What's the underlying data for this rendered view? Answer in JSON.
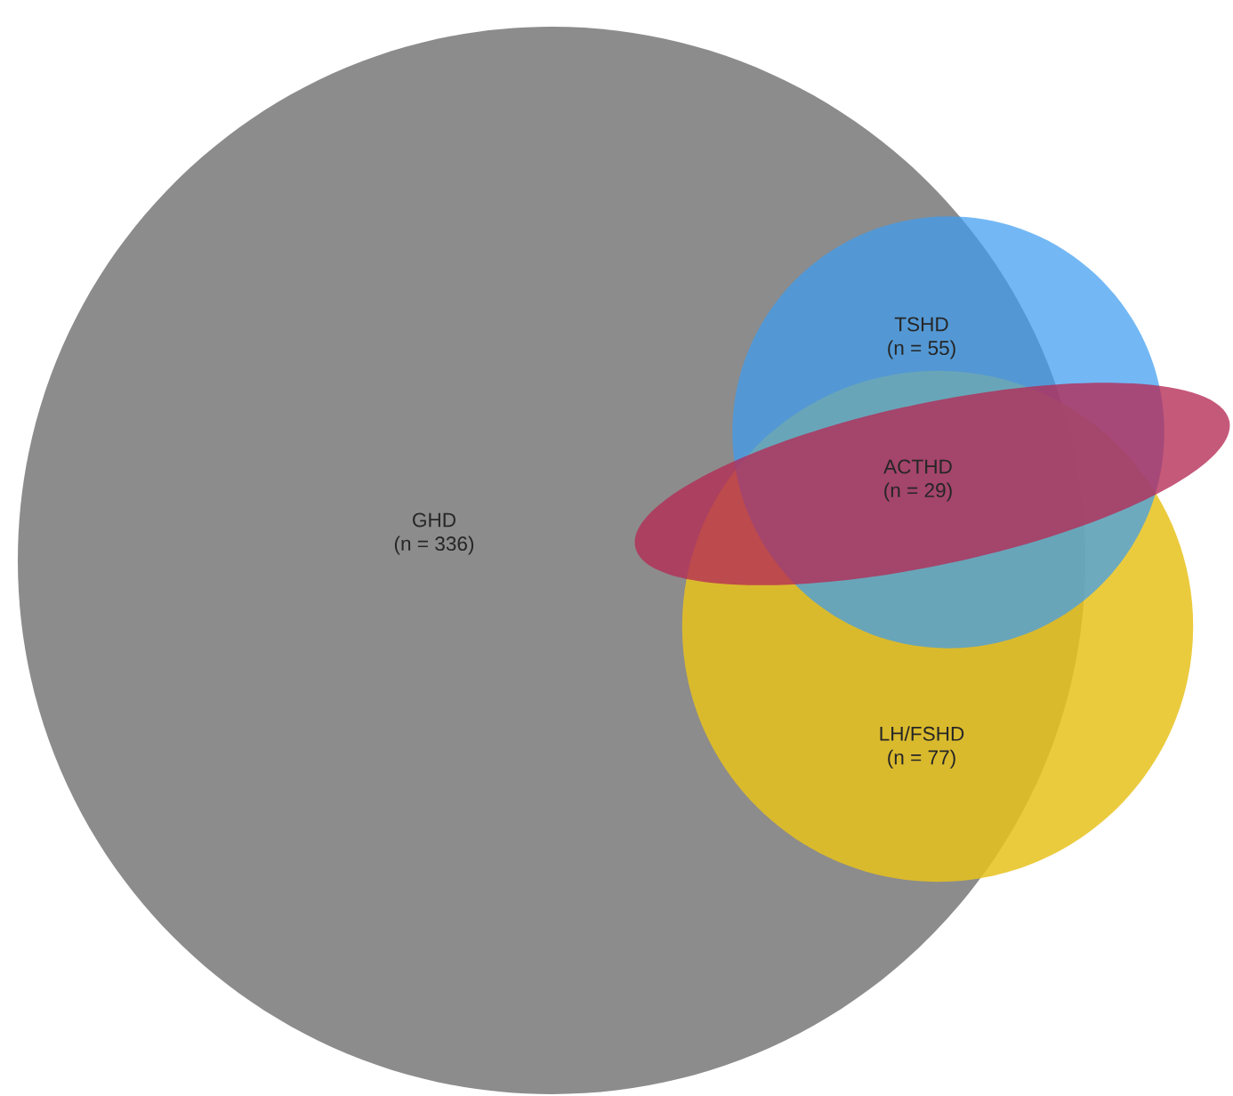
{
  "chart_data": {
    "type": "other",
    "categories": [
      "GHD",
      "TSHD",
      "ACTHD",
      "LH/FSHD"
    ],
    "values": [
      336,
      55,
      29,
      77
    ],
    "value_labels": [
      "(n = 336)",
      "(n = 55)",
      "(n = 29)",
      "(n = 77)"
    ],
    "colors": [
      "#8c8c8c",
      "#3d9cf0",
      "#b52a55",
      "#e8c21c"
    ]
  }
}
